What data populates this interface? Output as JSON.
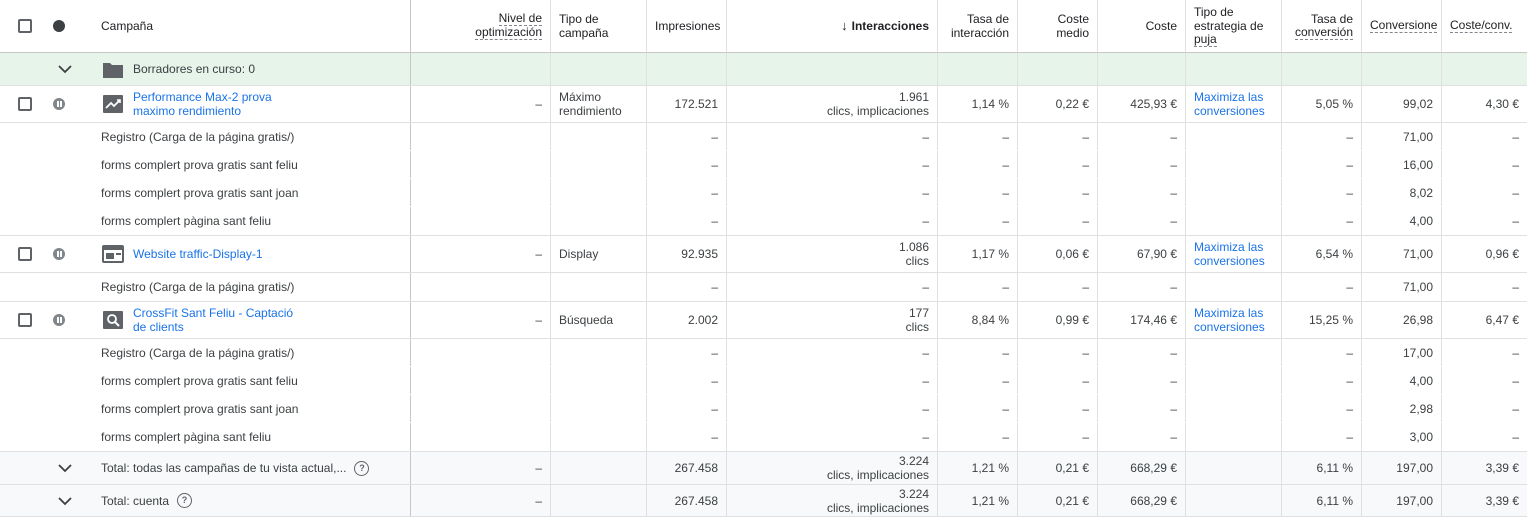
{
  "header": {
    "campaign": "Campaña",
    "optimization": [
      "Nivel de",
      "optimización"
    ],
    "campaign_type": [
      "Tipo de",
      "campaña"
    ],
    "impressions": "Impresiones",
    "interactions": "Interacciones",
    "interaction_rate": [
      "Tasa de",
      "interacción"
    ],
    "avg_cost": [
      "Coste",
      "medio"
    ],
    "cost": "Coste",
    "bid_strategy": [
      "Tipo de",
      "estrategia de",
      "puja"
    ],
    "conv_rate": [
      "Tasa de",
      "conversión"
    ],
    "conversions": "Conversione",
    "cost_per_conv": "Coste/conv.",
    "sort_arrow": "↓"
  },
  "drafts": {
    "label": "Borradores en curso: 0"
  },
  "campaigns": [
    {
      "name": [
        "Performance Max-2 prova",
        "maximo rendimiento"
      ],
      "type_icon": "performance-max-icon",
      "optimization": "–",
      "type": [
        "Máximo",
        "rendimiento"
      ],
      "impressions": "172.521",
      "interactions": "1.961",
      "interactions_sub": "clics, implicaciones",
      "interaction_rate": "1,14 %",
      "avg_cost": "0,22 €",
      "cost": "425,93 €",
      "bid_strategy": [
        "Maximiza las",
        "conversiones"
      ],
      "conv_rate": "5,05 %",
      "conversions": "99,02",
      "cost_per_conv": "4,30 €",
      "actions": [
        {
          "name": "Registro (Carga de la página gratis/)",
          "conversions": "71,00"
        },
        {
          "name": "forms complert prova gratis sant feliu",
          "conversions": "16,00"
        },
        {
          "name": "forms complert prova gratis sant joan",
          "conversions": "8,02"
        },
        {
          "name": "forms complert pàgina sant feliu",
          "conversions": "4,00"
        }
      ]
    },
    {
      "name": [
        "Website traffic-Display-1"
      ],
      "type_icon": "display-icon",
      "optimization": "–",
      "type": [
        "Display"
      ],
      "impressions": "92.935",
      "interactions": "1.086",
      "interactions_sub": "clics",
      "interaction_rate": "1,17 %",
      "avg_cost": "0,06 €",
      "cost": "67,90 €",
      "bid_strategy": [
        "Maximiza las",
        "conversiones"
      ],
      "conv_rate": "6,54 %",
      "conversions": "71,00",
      "cost_per_conv": "0,96 €",
      "actions": [
        {
          "name": "Registro (Carga de la página gratis/)",
          "conversions": "71,00"
        }
      ]
    },
    {
      "name": [
        "CrossFit Sant Feliu - Captació",
        "de clients"
      ],
      "type_icon": "search-icon",
      "optimization": "–",
      "type": [
        "Búsqueda"
      ],
      "impressions": "2.002",
      "interactions": "177",
      "interactions_sub": "clics",
      "interaction_rate": "8,84 %",
      "avg_cost": "0,99 €",
      "cost": "174,46 €",
      "bid_strategy": [
        "Maximiza las",
        "conversiones"
      ],
      "conv_rate": "15,25 %",
      "conversions": "26,98",
      "cost_per_conv": "6,47 €",
      "actions": [
        {
          "name": "Registro (Carga de la página gratis/)",
          "conversions": "17,00"
        },
        {
          "name": "forms complert prova gratis sant feliu",
          "conversions": "4,00"
        },
        {
          "name": "forms complert prova gratis sant joan",
          "conversions": "2,98"
        },
        {
          "name": "forms complert pàgina sant feliu",
          "conversions": "3,00"
        }
      ]
    }
  ],
  "dash": "–",
  "totals": [
    {
      "label": "Total: todas las campañas de tu vista actual,...",
      "optimization": "–",
      "impressions": "267.458",
      "interactions": "3.224",
      "interactions_sub": "clics, implicaciones",
      "interaction_rate": "1,21 %",
      "avg_cost": "0,21 €",
      "cost": "668,29 €",
      "conv_rate": "6,11 %",
      "conversions": "197,00",
      "cost_per_conv": "3,39 €"
    },
    {
      "label": "Total: cuenta",
      "optimization": "–",
      "impressions": "267.458",
      "interactions": "3.224",
      "interactions_sub": "clics, implicaciones",
      "interaction_rate": "1,21 %",
      "avg_cost": "0,21 €",
      "cost": "668,29 €",
      "conv_rate": "6,11 %",
      "conversions": "197,00",
      "cost_per_conv": "3,39 €"
    }
  ],
  "colors": {
    "link": "#1a73e8",
    "draft_bg": "#e6f4ea",
    "total_bg": "#f8f9fa"
  }
}
